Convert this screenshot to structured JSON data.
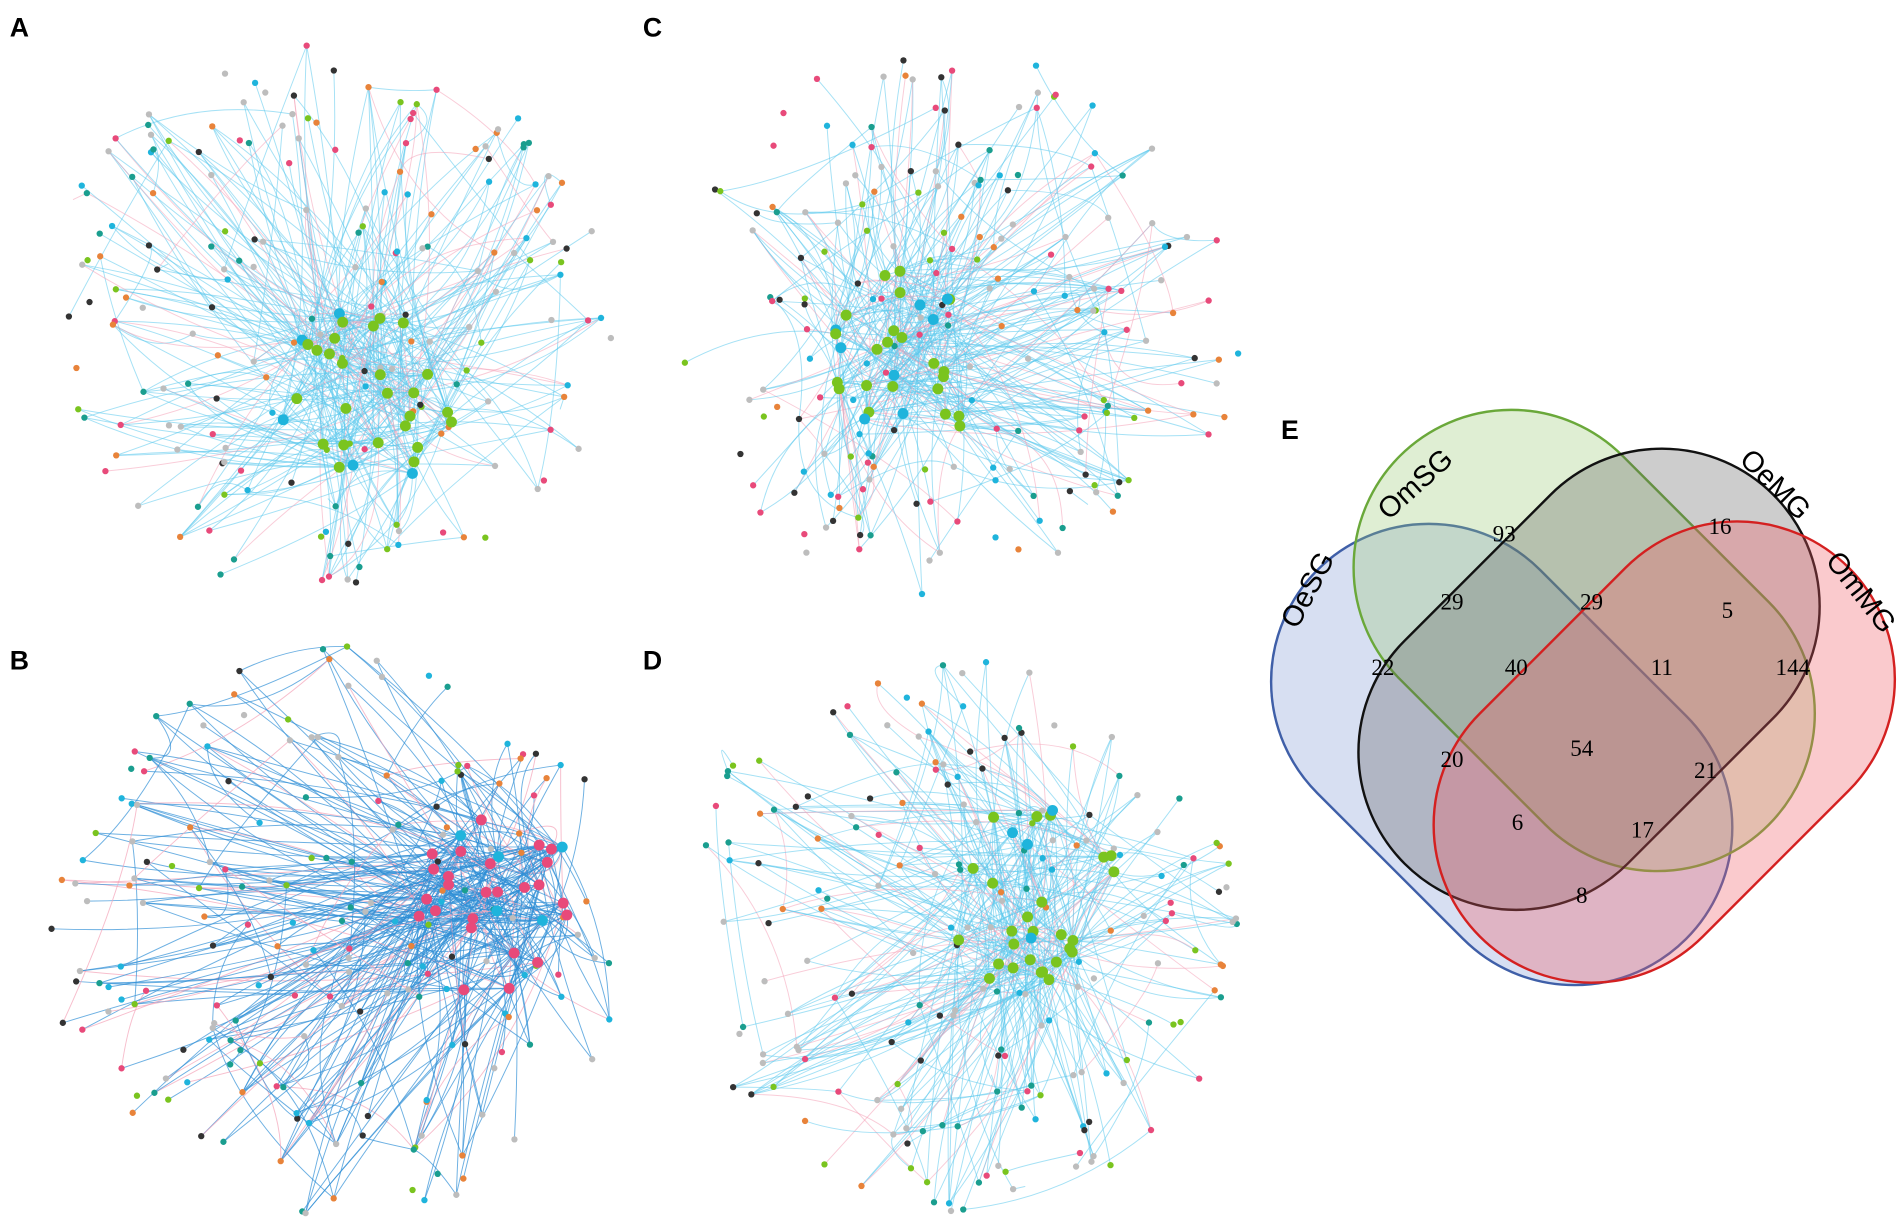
{
  "panel_labels": [
    "A",
    "B",
    "C",
    "D"
  ],
  "venn": {
    "label": "E",
    "sets": [
      "OeSG",
      "OmSG",
      "OeMG",
      "OmMG"
    ],
    "regions": [
      22,
      93,
      16,
      144,
      29,
      29,
      5,
      40,
      11,
      54,
      21,
      20,
      6,
      17,
      8
    ]
  }
}
